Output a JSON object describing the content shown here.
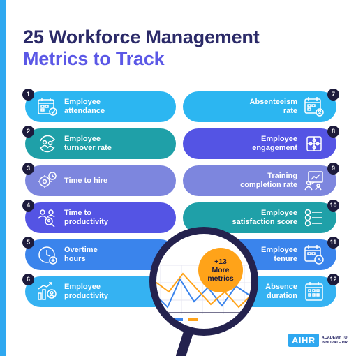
{
  "title": {
    "line1": "25 Workforce Management",
    "line2": "Metrics to Track"
  },
  "left_metrics": [
    {
      "num": "1",
      "label": "Employee\nattendance",
      "icon": "calendar-check-icon"
    },
    {
      "num": "2",
      "label": "Employee\nturnover rate",
      "icon": "people-cycle-icon"
    },
    {
      "num": "3",
      "label": "Time to hire",
      "icon": "gear-clock-icon"
    },
    {
      "num": "4",
      "label": "Time to\nproductivity",
      "icon": "team-search-icon"
    },
    {
      "num": "5",
      "label": "Overtime\nhours",
      "icon": "clock-plus-icon"
    },
    {
      "num": "6",
      "label": "Employee\nproductivity",
      "icon": "growth-person-icon"
    }
  ],
  "right_metrics": [
    {
      "num": "7",
      "label": "Absenteeism\nrate",
      "icon": "calendar-person-icon"
    },
    {
      "num": "8",
      "label": "Employee\nengagement",
      "icon": "puzzle-team-icon"
    },
    {
      "num": "9",
      "label": "Training\ncompletion rate",
      "icon": "presentation-icon"
    },
    {
      "num": "10",
      "label": "Employee\nsatisfaction score",
      "icon": "rating-list-icon"
    },
    {
      "num": "11",
      "label": "Employee\ntenure",
      "icon": "calendar-clock-icon"
    },
    {
      "num": "12",
      "label": "Absence\nduration",
      "icon": "calendar-grid-icon"
    }
  ],
  "more": "+13\nMore\nmetrics",
  "logo": {
    "brand": "AIHR",
    "tagline": "ACADEMY TO\nINNOVATE HR"
  },
  "colors": {
    "navy": "#2b2a68",
    "accent": "#5b58e6",
    "orange": "#ffa319",
    "sky": "#2cb6f1"
  }
}
